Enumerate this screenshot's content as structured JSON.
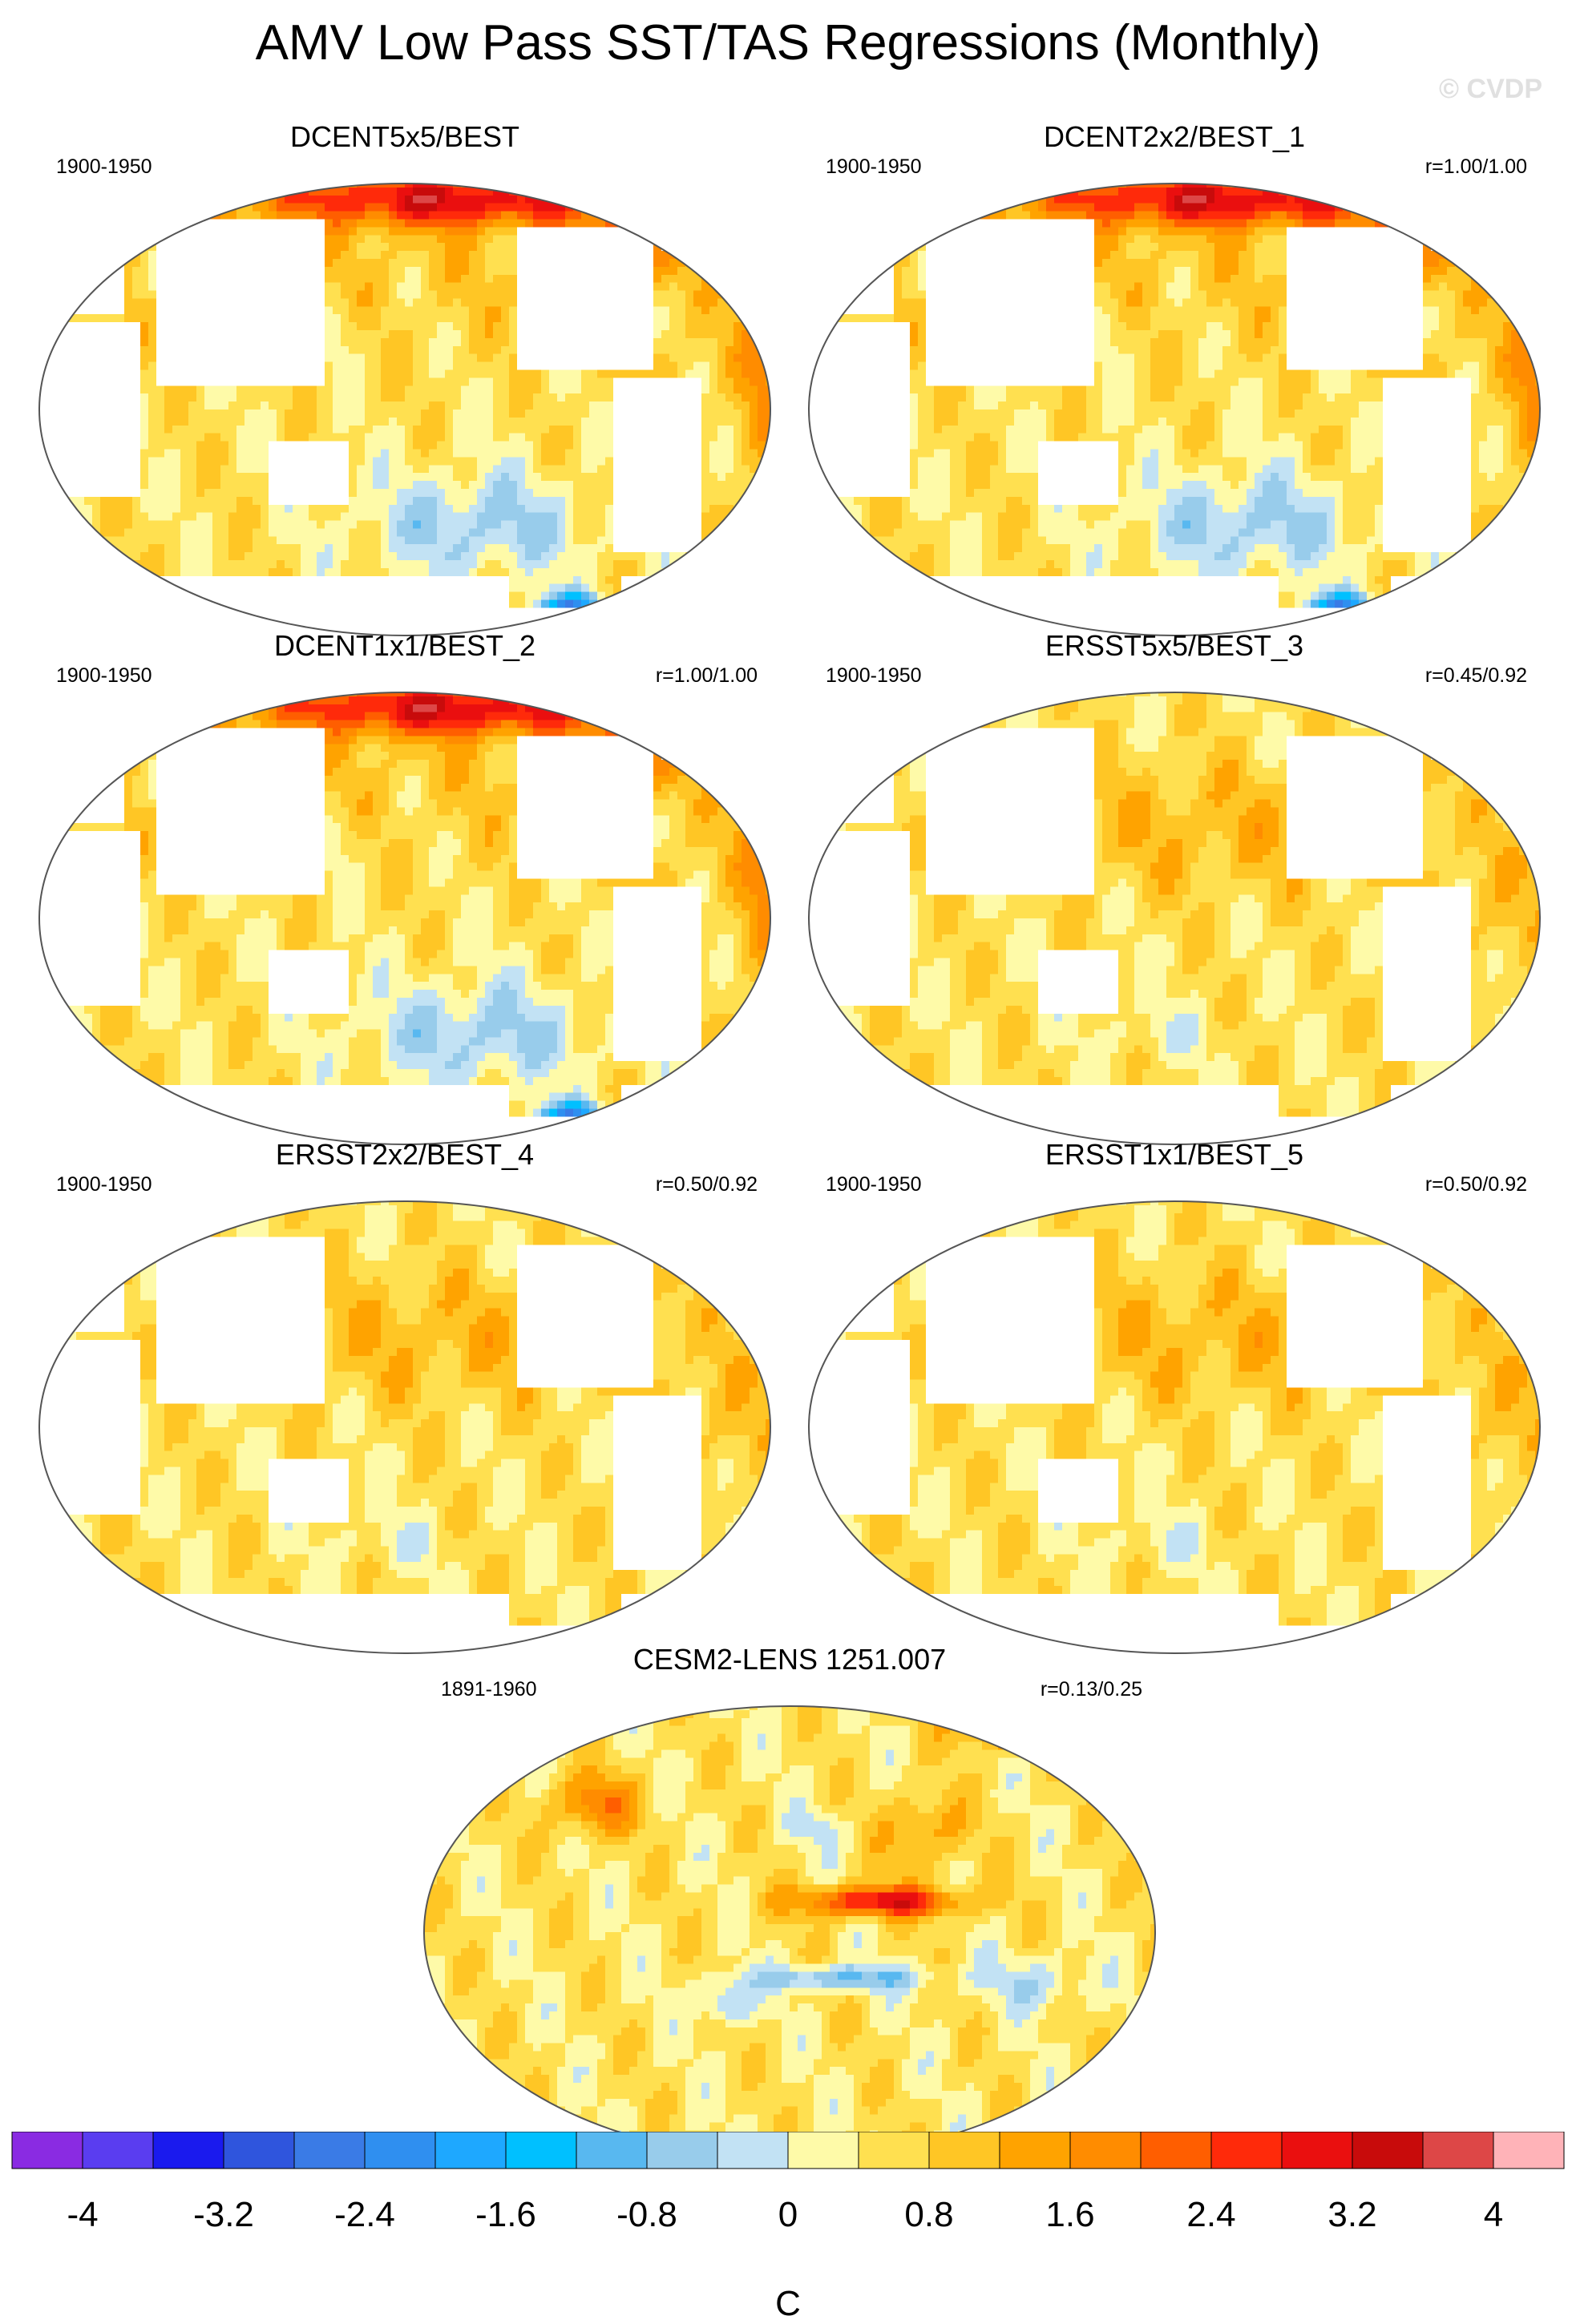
{
  "title": "AMV Low Pass SST/TAS Regressions (Monthly)",
  "watermark": "© CVDP",
  "chart_data": [
    {
      "type": "heatmap",
      "title": "DCENT5x5/BEST",
      "years": "1900-1950",
      "corr": "",
      "pattern": "dcent",
      "coarse": 5
    },
    {
      "type": "heatmap",
      "title": "DCENT2x2/BEST_1",
      "years": "1900-1950",
      "corr": "r=1.00/1.00",
      "pattern": "dcent",
      "coarse": 2
    },
    {
      "type": "heatmap",
      "title": "DCENT1x1/BEST_2",
      "years": "1900-1950",
      "corr": "r=1.00/1.00",
      "pattern": "dcent",
      "coarse": 1
    },
    {
      "type": "heatmap",
      "title": "ERSST5x5/BEST_3",
      "years": "1900-1950",
      "corr": "r=0.45/0.92",
      "pattern": "ersst",
      "coarse": 5
    },
    {
      "type": "heatmap",
      "title": "ERSST2x2/BEST_4",
      "years": "1900-1950",
      "corr": "r=0.50/0.92",
      "pattern": "ersst",
      "coarse": 2
    },
    {
      "type": "heatmap",
      "title": "ERSST1x1/BEST_5",
      "years": "1900-1950",
      "corr": "r=0.50/0.92",
      "pattern": "ersst",
      "coarse": 1
    },
    {
      "type": "heatmap",
      "title": "CESM2-LENS 1251.007",
      "years": "1891-1960",
      "corr": "r=0.13/0.25",
      "pattern": "cesm",
      "coarse": 0
    }
  ],
  "colorbar": {
    "units": "C",
    "levels": [
      -4.4,
      -4,
      -3.6,
      -3.2,
      -2.8,
      -2.4,
      -2,
      -1.6,
      -1.2,
      -0.8,
      -0.4,
      0,
      0.4,
      0.8,
      1.2,
      1.6,
      2,
      2.4,
      2.8,
      3.2,
      3.6,
      4,
      4.4
    ],
    "tick_labels": [
      "-4",
      "-3.2",
      "-2.4",
      "-1.6",
      "-0.8",
      "0",
      "0.8",
      "1.6",
      "2.4",
      "3.2",
      "4"
    ],
    "colors": [
      "#8a2be2",
      "#5a3df0",
      "#1a1aee",
      "#2f55dd",
      "#3a7be6",
      "#2f8ff0",
      "#1ea8ff",
      "#00c0ff",
      "#58b8f0",
      "#98cceb",
      "#c2e2f4",
      "#fefaa8",
      "#ffe050",
      "#ffc625",
      "#ffa300",
      "#ff8c00",
      "#ff5e00",
      "#ff2a0a",
      "#ea0f0f",
      "#c80b0b",
      "#dd4747",
      "#ffb3b8"
    ]
  }
}
